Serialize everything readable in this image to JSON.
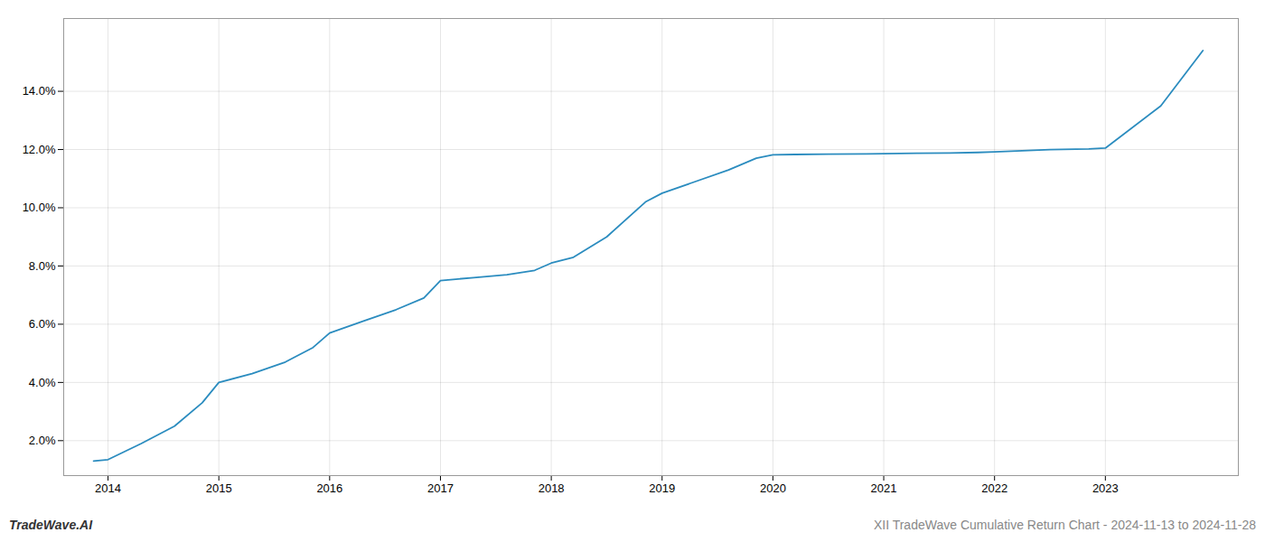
{
  "chart_data": {
    "type": "line",
    "title": "XII TradeWave Cumulative Return Chart - 2024-11-13 to 2024-11-28",
    "annotations": [
      "TradeWave.AI"
    ],
    "x": [
      2013.87,
      2014.0,
      2014.3,
      2014.6,
      2014.85,
      2015.0,
      2015.3,
      2015.6,
      2015.85,
      2016.0,
      2016.3,
      2016.6,
      2016.85,
      2017.0,
      2017.3,
      2017.6,
      2017.85,
      2018.0,
      2018.2,
      2018.5,
      2018.85,
      2019.0,
      2019.3,
      2019.6,
      2019.85,
      2020.0,
      2020.2,
      2020.5,
      2020.85,
      2021.0,
      2021.3,
      2021.6,
      2021.85,
      2022.0,
      2022.2,
      2022.5,
      2022.85,
      2023.0,
      2023.5,
      2023.88
    ],
    "values": [
      1.3,
      1.35,
      1.9,
      2.5,
      3.3,
      4.0,
      4.3,
      4.7,
      5.2,
      5.7,
      6.1,
      6.5,
      6.9,
      7.5,
      7.6,
      7.7,
      7.85,
      8.1,
      8.3,
      9.0,
      10.2,
      10.5,
      10.9,
      11.3,
      11.7,
      11.82,
      11.83,
      11.84,
      11.85,
      11.86,
      11.87,
      11.88,
      11.9,
      11.92,
      11.95,
      12.0,
      12.02,
      12.05,
      13.5,
      15.4
    ],
    "color": "#2b8cbf",
    "xlim": [
      2013.6,
      2024.2
    ],
    "xticks": [
      2014,
      2015,
      2016,
      2017,
      2018,
      2019,
      2020,
      2021,
      2022,
      2023
    ],
    "ylim": [
      0.8,
      16.5
    ],
    "yticks": [
      {
        "value": 2.0,
        "label": "2.0%"
      },
      {
        "value": 4.0,
        "label": "4.0%"
      },
      {
        "value": 6.0,
        "label": "6.0%"
      },
      {
        "value": 8.0,
        "label": "8.0%"
      },
      {
        "value": 10.0,
        "label": "10.0%"
      },
      {
        "value": 12.0,
        "label": "12.0%"
      },
      {
        "value": 14.0,
        "label": "14.0%"
      }
    ],
    "grid": true
  }
}
